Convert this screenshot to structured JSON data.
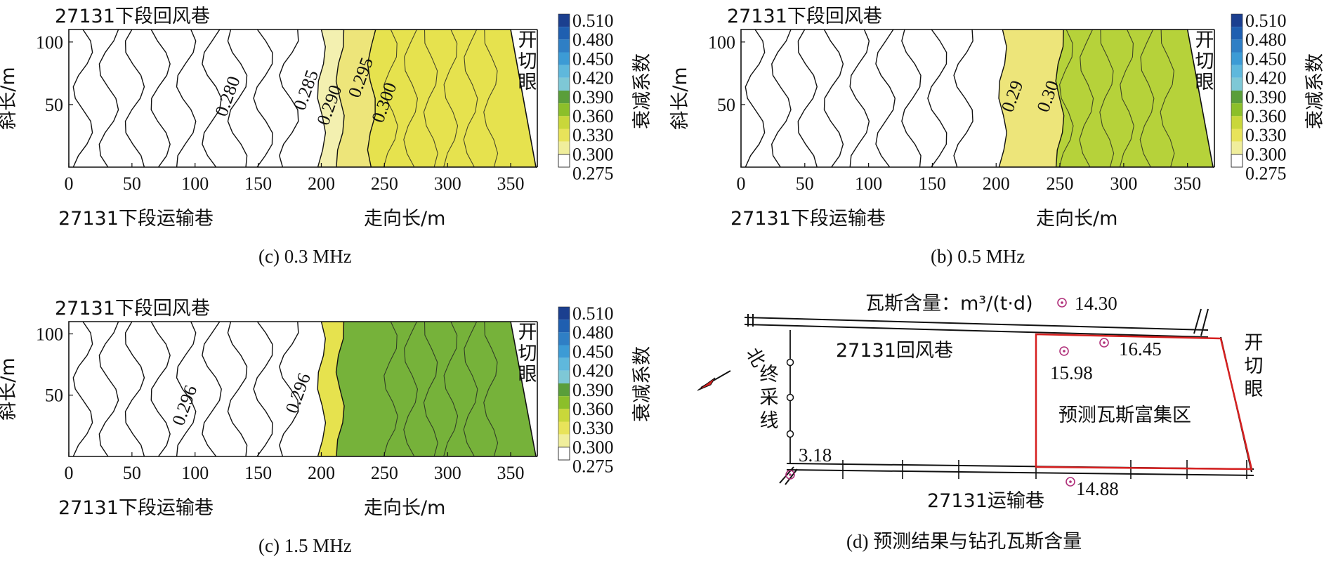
{
  "chart_data": [
    {
      "type": "heatmap",
      "id": "p1",
      "caption": "(c)  0.3 MHz",
      "top_label": "27131下段回风巷",
      "bottom_label": "27131下段运输巷",
      "xlabel": "走向长/m",
      "ylabel": "斜长/m",
      "right_label": "开切眼",
      "colorbar_label": "衰减系数",
      "xticks": [
        "0",
        "50",
        "100",
        "150",
        "200",
        "250",
        "300",
        "350"
      ],
      "yticks": [
        "50",
        "100"
      ],
      "xlim": [
        0,
        370
      ],
      "ylim": [
        0,
        110
      ],
      "contour_labels": [
        "0.280",
        "0.285",
        "0.290",
        "0.295",
        "0.300"
      ],
      "bands": [
        {
          "x0": 200,
          "x1": 215,
          "level": 0.29
        },
        {
          "x0": 215,
          "x1": 240,
          "level": 0.295
        },
        {
          "x0": 240,
          "x1": 370,
          "level": 0.3
        }
      ]
    },
    {
      "type": "heatmap",
      "id": "p2",
      "caption": "(b)  0.5 MHz",
      "top_label": "27131下段回风巷",
      "bottom_label": "27131下段运输巷",
      "xlabel": "走向长/m",
      "ylabel": "斜长/m",
      "right_label": "开切眼",
      "colorbar_label": "衰减系数",
      "xticks": [
        "0",
        "50",
        "100",
        "150",
        "200",
        "250",
        "300",
        "350"
      ],
      "yticks": [
        "50",
        "100"
      ],
      "xlim": [
        0,
        370
      ],
      "ylim": [
        0,
        110
      ],
      "contour_labels": [
        "0.29",
        "0.30"
      ],
      "bands": [
        {
          "x0": 205,
          "x1": 250,
          "level": 0.295
        },
        {
          "x0": 250,
          "x1": 370,
          "level": 0.33
        }
      ]
    },
    {
      "type": "heatmap",
      "id": "p3",
      "caption": "(c)  1.5 MHz",
      "top_label": "27131下段回风巷",
      "bottom_label": "27131下段运输巷",
      "xlabel": "走向长/m",
      "ylabel": "斜长/m",
      "right_label": "开切眼",
      "colorbar_label": "衰减系数",
      "xticks": [
        "0",
        "50",
        "100",
        "150",
        "200",
        "250",
        "300",
        "350"
      ],
      "yticks": [
        "50",
        "100"
      ],
      "xlim": [
        0,
        370
      ],
      "ylim": [
        0,
        110
      ],
      "contour_labels": [
        "0.296",
        "0.296"
      ],
      "bands": [
        {
          "x0": 200,
          "x1": 215,
          "level": 0.3
        },
        {
          "x0": 215,
          "x1": 370,
          "level": 0.345
        }
      ]
    }
  ],
  "colorbar": {
    "ticks": [
      "0.510",
      "0.480",
      "0.450",
      "0.420",
      "0.390",
      "0.360",
      "0.330",
      "0.300",
      "0.275"
    ],
    "colors": [
      "#1b3f8f",
      "#1f5fb0",
      "#2f7fc5",
      "#3c9bd5",
      "#5fb8dc",
      "#7ec8d6",
      "#5a9e3a",
      "#8cbf2a",
      "#c9d73a",
      "#e8e35a",
      "#f0ee9c",
      "#ffffff"
    ]
  },
  "map": {
    "caption": "(d)  预测结果与钻孔瓦斯含量",
    "gas_label": "瓦斯含量：m³/(t·d)",
    "return_airway": "27131回风巷",
    "haulage_way": "27131运输巷",
    "open_cut": "开切眼",
    "stop_line": "终采线",
    "north": "北",
    "zone_label": "预测瓦斯富集区",
    "boreholes": [
      {
        "value": "14.30"
      },
      {
        "value": "16.45"
      },
      {
        "value": "15.98"
      },
      {
        "value": "3.18"
      },
      {
        "value": "14.88"
      }
    ]
  }
}
